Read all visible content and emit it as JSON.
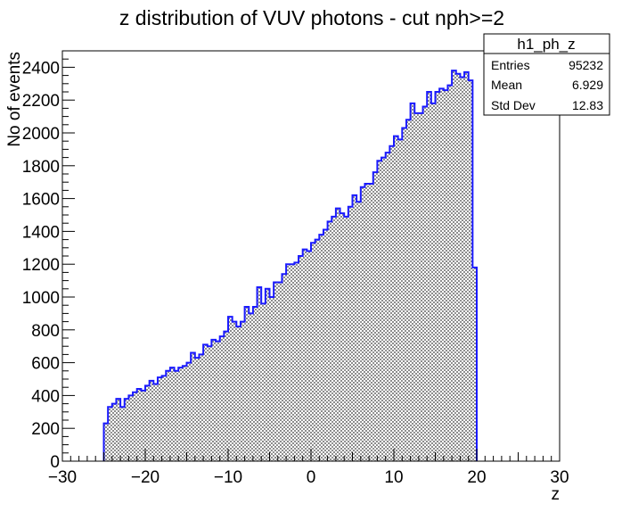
{
  "chart_data": {
    "type": "bar",
    "title": "z distribution of VUV photons - cut nph>=2",
    "xlabel": "z",
    "ylabel": "No of events",
    "xlim": [
      -30,
      30
    ],
    "ylim": [
      0,
      2500
    ],
    "x_ticks": [
      -30,
      -20,
      -10,
      0,
      10,
      20,
      30
    ],
    "y_ticks": [
      0,
      200,
      400,
      600,
      800,
      1000,
      1200,
      1400,
      1600,
      1800,
      2000,
      2200,
      2400
    ],
    "bin_start": -25,
    "bin_width": 0.5,
    "values": [
      230,
      330,
      350,
      380,
      330,
      380,
      400,
      420,
      440,
      430,
      460,
      490,
      470,
      510,
      520,
      550,
      570,
      550,
      570,
      580,
      600,
      660,
      630,
      650,
      710,
      700,
      740,
      730,
      760,
      790,
      880,
      850,
      820,
      850,
      940,
      900,
      940,
      1060,
      960,
      1050,
      1000,
      1090,
      1090,
      1140,
      1200,
      1200,
      1210,
      1250,
      1290,
      1280,
      1330,
      1350,
      1380,
      1410,
      1460,
      1490,
      1540,
      1510,
      1490,
      1550,
      1620,
      1580,
      1670,
      1690,
      1690,
      1760,
      1830,
      1850,
      1880,
      1920,
      1980,
      1960,
      2030,
      2080,
      2180,
      2120,
      2120,
      2160,
      2250,
      2180,
      2250,
      2270,
      2260,
      2290,
      2380,
      2360,
      2340,
      2370,
      2320,
      1180
    ],
    "line_color": "#1a1aff",
    "stats": {
      "name": "h1_ph_z",
      "rows": [
        {
          "label": "Entries",
          "value": "95232"
        },
        {
          "label": "Mean",
          "value": "6.929"
        },
        {
          "label": "Std Dev",
          "value": "12.83"
        }
      ]
    }
  }
}
